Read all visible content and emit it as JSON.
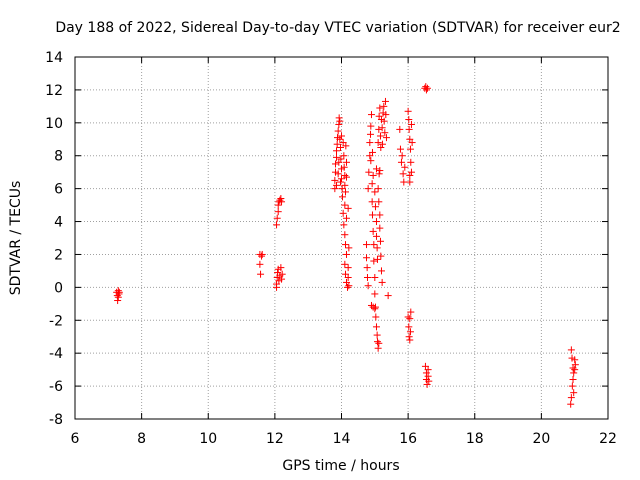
{
  "chart_data": {
    "type": "scatter",
    "title": "Day 188 of 2022, Sidereal Day-to-day VTEC variation (SDTVAR) for receiver eur2",
    "xlabel": "GPS time / hours",
    "ylabel": "SDTVAR / TECUs",
    "xlim": [
      6,
      22
    ],
    "ylim": [
      -8,
      14
    ],
    "xticks": [
      6,
      8,
      10,
      12,
      14,
      16,
      18,
      20,
      22
    ],
    "yticks": [
      -8,
      -6,
      -4,
      -2,
      0,
      2,
      4,
      6,
      8,
      10,
      12,
      14
    ],
    "grid": true,
    "marker": "+",
    "marker_color": "#ff0000",
    "series": [
      {
        "name": "sdtvar",
        "points": [
          [
            7.25,
            -0.3
          ],
          [
            7.27,
            -0.5
          ],
          [
            7.28,
            -0.8
          ],
          [
            7.3,
            -0.2
          ],
          [
            7.32,
            -0.4
          ],
          [
            7.33,
            -0.3
          ],
          [
            7.3,
            -0.6
          ],
          [
            11.55,
            2.0
          ],
          [
            11.55,
            1.4
          ],
          [
            11.57,
            0.8
          ],
          [
            11.6,
            1.9
          ],
          [
            11.62,
            2.0
          ],
          [
            12.05,
            3.8
          ],
          [
            12.07,
            4.2
          ],
          [
            12.1,
            5.0
          ],
          [
            12.12,
            5.2
          ],
          [
            12.15,
            5.3
          ],
          [
            12.18,
            5.4
          ],
          [
            12.2,
            5.2
          ],
          [
            12.1,
            4.6
          ],
          [
            12.05,
            0.2
          ],
          [
            12.07,
            0.6
          ],
          [
            12.08,
            0.9
          ],
          [
            12.1,
            1.1
          ],
          [
            12.12,
            0.4
          ],
          [
            12.15,
            0.7
          ],
          [
            12.18,
            1.2
          ],
          [
            12.2,
            0.5
          ],
          [
            12.22,
            0.8
          ],
          [
            12.05,
            0.0
          ],
          [
            13.8,
            6.0
          ],
          [
            13.8,
            6.5
          ],
          [
            13.82,
            7.0
          ],
          [
            13.82,
            7.5
          ],
          [
            13.85,
            7.9
          ],
          [
            13.85,
            8.3
          ],
          [
            13.87,
            8.7
          ],
          [
            13.88,
            9.1
          ],
          [
            13.9,
            9.5
          ],
          [
            13.92,
            9.9
          ],
          [
            13.93,
            10.3
          ],
          [
            13.95,
            10.1
          ],
          [
            13.95,
            9.0
          ],
          [
            13.97,
            8.5
          ],
          [
            13.98,
            7.8
          ],
          [
            14.0,
            7.2
          ],
          [
            14.0,
            6.6
          ],
          [
            14.02,
            6.0
          ],
          [
            14.03,
            5.5
          ],
          [
            14.05,
            8.8
          ],
          [
            14.07,
            8.0
          ],
          [
            14.08,
            7.3
          ],
          [
            14.1,
            6.8
          ],
          [
            14.1,
            6.2
          ],
          [
            14.12,
            5.8
          ],
          [
            14.13,
            8.6
          ],
          [
            14.15,
            7.6
          ],
          [
            14.15,
            6.7
          ],
          [
            13.85,
            6.2
          ],
          [
            13.9,
            6.9
          ],
          [
            13.92,
            7.6
          ],
          [
            13.97,
            6.4
          ],
          [
            14.0,
            9.2
          ],
          [
            14.05,
            4.5
          ],
          [
            14.07,
            3.8
          ],
          [
            14.1,
            3.2
          ],
          [
            14.12,
            2.6
          ],
          [
            14.15,
            2.0
          ],
          [
            14.1,
            1.4
          ],
          [
            14.12,
            0.8
          ],
          [
            14.15,
            0.3
          ],
          [
            14.18,
            0.0
          ],
          [
            14.2,
            0.6
          ],
          [
            14.2,
            1.2
          ],
          [
            14.22,
            2.4
          ],
          [
            14.15,
            4.2
          ],
          [
            14.2,
            4.8
          ],
          [
            14.1,
            5.0
          ],
          [
            14.22,
            0.1
          ],
          [
            14.75,
            2.6
          ],
          [
            14.75,
            1.8
          ],
          [
            14.77,
            1.2
          ],
          [
            14.78,
            0.6
          ],
          [
            14.8,
            0.1
          ],
          [
            14.8,
            6.0
          ],
          [
            14.82,
            7.0
          ],
          [
            14.85,
            8.0
          ],
          [
            14.85,
            8.8
          ],
          [
            14.87,
            9.3
          ],
          [
            14.88,
            9.8
          ],
          [
            14.9,
            10.5
          ],
          [
            14.92,
            5.2
          ],
          [
            14.93,
            4.4
          ],
          [
            14.95,
            3.4
          ],
          [
            14.97,
            2.6
          ],
          [
            14.97,
            1.6
          ],
          [
            15.0,
            0.6
          ],
          [
            15.0,
            -0.4
          ],
          [
            15.02,
            -1.2
          ],
          [
            15.03,
            -1.8
          ],
          [
            15.05,
            -2.4
          ],
          [
            15.07,
            -2.9
          ],
          [
            15.08,
            -3.3
          ],
          [
            15.1,
            -3.7
          ],
          [
            15.12,
            -3.4
          ],
          [
            14.9,
            -1.1
          ],
          [
            14.95,
            -1.2
          ],
          [
            15.0,
            -1.3
          ],
          [
            14.92,
            6.3
          ],
          [
            14.95,
            6.8
          ],
          [
            15.0,
            5.8
          ],
          [
            15.02,
            4.9
          ],
          [
            15.05,
            4.0
          ],
          [
            15.05,
            3.1
          ],
          [
            15.07,
            2.4
          ],
          [
            15.08,
            1.7
          ],
          [
            14.88,
            7.7
          ],
          [
            14.93,
            8.2
          ],
          [
            15.1,
            8.8
          ],
          [
            15.12,
            9.6
          ],
          [
            15.13,
            10.4
          ],
          [
            15.15,
            10.9
          ],
          [
            15.17,
            9.2
          ],
          [
            15.18,
            8.5
          ],
          [
            15.2,
            10.2
          ],
          [
            15.22,
            9.7
          ],
          [
            15.23,
            8.7
          ],
          [
            15.25,
            10.6
          ],
          [
            15.27,
            11.0
          ],
          [
            15.28,
            10.1
          ],
          [
            15.3,
            9.4
          ],
          [
            15.32,
            11.3
          ],
          [
            15.33,
            10.5
          ],
          [
            15.35,
            9.1
          ],
          [
            15.15,
            7.1
          ],
          [
            15.13,
            6.9
          ],
          [
            15.1,
            6.0
          ],
          [
            15.12,
            5.2
          ],
          [
            15.15,
            4.4
          ],
          [
            15.15,
            3.6
          ],
          [
            15.17,
            2.8
          ],
          [
            15.18,
            1.9
          ],
          [
            15.2,
            1.0
          ],
          [
            15.22,
            0.3
          ],
          [
            15.4,
            -0.5
          ],
          [
            15.05,
            7.2
          ],
          [
            15.75,
            9.6
          ],
          [
            15.77,
            8.4
          ],
          [
            15.8,
            7.6
          ],
          [
            15.82,
            8.0
          ],
          [
            15.85,
            6.9
          ],
          [
            15.87,
            6.4
          ],
          [
            15.9,
            7.3
          ],
          [
            16.0,
            10.7
          ],
          [
            16.02,
            10.2
          ],
          [
            16.03,
            9.6
          ],
          [
            16.05,
            9.0
          ],
          [
            16.07,
            8.4
          ],
          [
            16.08,
            7.6
          ],
          [
            16.1,
            7.0
          ],
          [
            16.05,
            6.4
          ],
          [
            16.1,
            9.9
          ],
          [
            16.12,
            8.8
          ],
          [
            16.05,
            6.8
          ],
          [
            16.0,
            -1.8
          ],
          [
            16.02,
            -2.4
          ],
          [
            16.03,
            -3.0
          ],
          [
            16.05,
            -3.2
          ],
          [
            16.07,
            -2.7
          ],
          [
            16.08,
            -1.5
          ],
          [
            16.05,
            -1.9
          ],
          [
            16.5,
            12.1
          ],
          [
            16.53,
            12.2
          ],
          [
            16.55,
            12.0
          ],
          [
            16.58,
            12.1
          ],
          [
            16.52,
            -4.8
          ],
          [
            16.55,
            -5.2
          ],
          [
            16.55,
            -5.6
          ],
          [
            16.57,
            -5.9
          ],
          [
            16.6,
            -5.4
          ],
          [
            16.6,
            -5.0
          ],
          [
            16.62,
            -5.7
          ],
          [
            20.9,
            -3.8
          ],
          [
            20.92,
            -4.3
          ],
          [
            20.95,
            -4.9
          ],
          [
            20.97,
            -5.2
          ],
          [
            21.0,
            -5.0
          ],
          [
            21.02,
            -4.7
          ],
          [
            20.95,
            -5.6
          ],
          [
            20.93,
            -6.0
          ],
          [
            20.97,
            -6.4
          ],
          [
            20.9,
            -6.7
          ],
          [
            20.88,
            -7.1
          ],
          [
            21.0,
            -4.4
          ]
        ]
      }
    ]
  }
}
